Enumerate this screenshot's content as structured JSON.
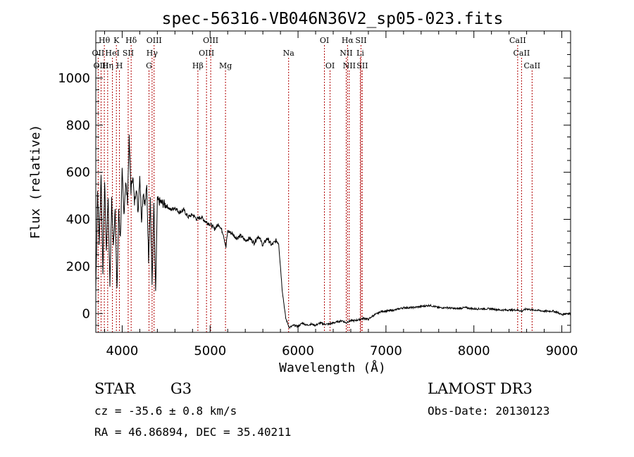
{
  "chart_data": {
    "type": "line",
    "title": "spec-56316-VB046N36V2_sp05-023.fits",
    "xlabel": "Wavelength (Å)",
    "ylabel": "Flux (relative)",
    "xlim": [
      3700,
      9100
    ],
    "ylim": [
      -80,
      1200
    ],
    "xticks": [
      4000,
      5000,
      6000,
      7000,
      8000,
      9000
    ],
    "xtick_labels": [
      "4000",
      "5000",
      "6000",
      "7000",
      "8000",
      "9000"
    ],
    "yticks": [
      0,
      200,
      400,
      600,
      800,
      1000
    ],
    "ytick_labels": [
      "0",
      "200",
      "400",
      "600",
      "800",
      "1000"
    ],
    "series": [
      {
        "name": "flux",
        "x": [
          3700,
          3720,
          3740,
          3760,
          3780,
          3800,
          3820,
          3840,
          3860,
          3880,
          3900,
          3920,
          3940,
          3960,
          3980,
          4000,
          4020,
          4040,
          4060,
          4080,
          4100,
          4120,
          4140,
          4160,
          4180,
          4200,
          4220,
          4240,
          4260,
          4280,
          4300,
          4320,
          4340,
          4360,
          4380,
          4400,
          4450,
          4500,
          4550,
          4600,
          4650,
          4700,
          4750,
          4800,
          4850,
          4900,
          4950,
          5000,
          5050,
          5100,
          5150,
          5180,
          5200,
          5250,
          5300,
          5350,
          5400,
          5450,
          5500,
          5550,
          5600,
          5650,
          5700,
          5750,
          5780,
          5800,
          5820,
          5840,
          5860,
          5880,
          5900,
          5950,
          6000,
          6050,
          6100,
          6150,
          6200,
          6250,
          6300,
          6350,
          6400,
          6450,
          6500,
          6550,
          6563,
          6600,
          6650,
          6700,
          6750,
          6800,
          6850,
          6900,
          6950,
          7000,
          7100,
          7200,
          7300,
          7400,
          7500,
          7600,
          7700,
          7800,
          7900,
          8000,
          8100,
          8200,
          8300,
          8400,
          8500,
          8542,
          8600,
          8662,
          8700,
          8800,
          8900,
          8950,
          9000,
          9050,
          9100
        ],
        "y": [
          100,
          520,
          300,
          600,
          180,
          560,
          260,
          500,
          120,
          480,
          280,
          460,
          90,
          430,
          320,
          600,
          420,
          560,
          480,
          740,
          520,
          590,
          470,
          540,
          430,
          590,
          400,
          520,
          460,
          540,
          230,
          490,
          120,
          470,
          80,
          480,
          470,
          460,
          440,
          450,
          430,
          440,
          410,
          420,
          400,
          410,
          390,
          380,
          360,
          380,
          340,
          280,
          350,
          340,
          320,
          330,
          310,
          320,
          300,
          330,
          290,
          320,
          290,
          310,
          300,
          200,
          100,
          40,
          -20,
          -40,
          -60,
          -50,
          -55,
          -40,
          -50,
          -45,
          -50,
          -40,
          -45,
          -45,
          -40,
          -35,
          -30,
          -40,
          -35,
          -30,
          -30,
          -25,
          -20,
          -25,
          -10,
          0,
          10,
          10,
          15,
          25,
          25,
          30,
          35,
          25,
          25,
          20,
          25,
          20,
          20,
          20,
          15,
          15,
          15,
          10,
          20,
          15,
          15,
          10,
          10,
          5,
          -5,
          0,
          0
        ]
      }
    ],
    "line_labels": [
      {
        "label": "OII",
        "x": 3727,
        "row": 2
      },
      {
        "label": "Hθ",
        "x": 3797,
        "row": 1
      },
      {
        "label": "OIII",
        "x": 3760,
        "row": 3
      },
      {
        "label": "Hη",
        "x": 3835,
        "row": 3
      },
      {
        "label": "HeI",
        "x": 3889,
        "row": 2
      },
      {
        "label": "K",
        "x": 3934,
        "row": 1
      },
      {
        "label": "H",
        "x": 3969,
        "row": 3
      },
      {
        "label": "SII",
        "x": 4068,
        "row": 2
      },
      {
        "label": "Hδ",
        "x": 4102,
        "row": 1
      },
      {
        "label": "G",
        "x": 4305,
        "row": 3
      },
      {
        "label": "OIII",
        "x": 4363,
        "row": 1
      },
      {
        "label": "Hγ",
        "x": 4340,
        "row": 2
      },
      {
        "label": "Hβ",
        "x": 4861,
        "row": 3
      },
      {
        "label": "OIII",
        "x": 4959,
        "row": 2
      },
      {
        "label": "OIII",
        "x": 5007,
        "row": 1
      },
      {
        "label": "Mg",
        "x": 5175,
        "row": 3
      },
      {
        "label": "Na",
        "x": 5893,
        "row": 2
      },
      {
        "label": "OI",
        "x": 6300,
        "row": 1
      },
      {
        "label": "OI",
        "x": 6364,
        "row": 3
      },
      {
        "label": "NII",
        "x": 6548,
        "row": 2
      },
      {
        "label": "Hα",
        "x": 6563,
        "row": 1
      },
      {
        "label": "NII",
        "x": 6583,
        "row": 3
      },
      {
        "label": "Li",
        "x": 6708,
        "row": 2
      },
      {
        "label": "SII",
        "x": 6716,
        "row": 1
      },
      {
        "label": "SII",
        "x": 6731,
        "row": 3
      },
      {
        "label": "CaII",
        "x": 8498,
        "row": 1
      },
      {
        "label": "CaII",
        "x": 8542,
        "row": 2
      },
      {
        "label": "CaII",
        "x": 8662,
        "row": 3
      }
    ]
  },
  "info": {
    "class_label": "STAR",
    "subclass": "G3",
    "survey": "LAMOST DR3",
    "redshift_text": "cz = -35.6 ± 0.8 km/s",
    "obs_date_text": "Obs-Date: 20130123",
    "coords_text": "RA =  46.86894, DEC =  35.40211"
  }
}
